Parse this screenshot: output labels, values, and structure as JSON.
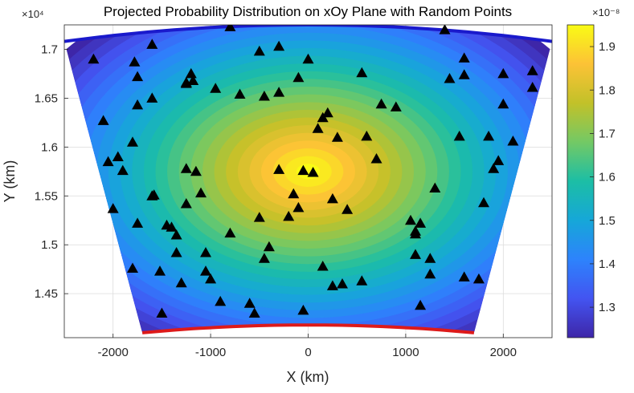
{
  "chart_data": {
    "type": "heatmap",
    "title": "Projected Probability Distribution on xOy Plane with Random Points",
    "xlabel": "X (km)",
    "ylabel": "Y (km)",
    "y_exponent_label": "×10⁴",
    "colorbar_exponent_label": "×10⁻⁸",
    "xlim": [
      -2500,
      2500
    ],
    "ylim": [
      14050,
      17250
    ],
    "x_ticks": [
      -2000,
      -1000,
      0,
      1000,
      2000
    ],
    "x_tick_labels": [
      "-2000",
      "-1000",
      "0",
      "1000",
      "2000"
    ],
    "y_ticks": [
      14500,
      15000,
      15500,
      16000,
      16500,
      17000
    ],
    "y_tick_labels": [
      "1.45",
      "1.5",
      "1.55",
      "1.6",
      "1.65",
      "1.7"
    ],
    "colorbar_range": [
      1.23,
      1.95
    ],
    "colorbar_ticks": [
      1.3,
      1.4,
      1.5,
      1.6,
      1.7,
      1.8,
      1.9
    ],
    "colorbar_tick_labels": [
      "1.3",
      "1.4",
      "1.5",
      "1.6",
      "1.7",
      "1.8",
      "1.9"
    ],
    "colormap": "parula",
    "grid": true,
    "distribution": {
      "center_x": 0,
      "center_y": 15750,
      "peak": 1.95,
      "min": 1.23
    },
    "domain": {
      "top_arc_color": "#1a1acc",
      "bottom_arc_color": "#dd1a1a",
      "top_arc": {
        "x_range": [
          -2500,
          2500
        ],
        "y_center": 17250,
        "y_edge": 17080
      },
      "bottom_arc": {
        "x_range": [
          -1700,
          1700
        ],
        "y_center": 14180,
        "y_edge": 14100
      }
    },
    "points": [
      [
        -2200,
        16900
      ],
      [
        -2100,
        16270
      ],
      [
        -2050,
        15850
      ],
      [
        -2000,
        15370
      ],
      [
        -1950,
        15900
      ],
      [
        -1900,
        15760
      ],
      [
        -1800,
        16050
      ],
      [
        -1780,
        16870
      ],
      [
        -1750,
        16720
      ],
      [
        -1750,
        16430
      ],
      [
        -1750,
        15220
      ],
      [
        -1800,
        14760
      ],
      [
        -1600,
        17050
      ],
      [
        -1600,
        16500
      ],
      [
        -1600,
        15500
      ],
      [
        -1580,
        15510
      ],
      [
        -1520,
        14730
      ],
      [
        -1500,
        14300
      ],
      [
        -1450,
        15200
      ],
      [
        -1400,
        15180
      ],
      [
        -1350,
        15100
      ],
      [
        -1350,
        14920
      ],
      [
        -1300,
        14610
      ],
      [
        -1250,
        16650
      ],
      [
        -1200,
        16750
      ],
      [
        -1250,
        16660
      ],
      [
        -1180,
        16680
      ],
      [
        -1250,
        15780
      ],
      [
        -1250,
        15420
      ],
      [
        -1150,
        15750
      ],
      [
        -1100,
        15530
      ],
      [
        -1050,
        14920
      ],
      [
        -1050,
        14730
      ],
      [
        -1000,
        14650
      ],
      [
        -950,
        16600
      ],
      [
        -900,
        14420
      ],
      [
        -800,
        15120
      ],
      [
        -800,
        17230
      ],
      [
        -700,
        16540
      ],
      [
        -600,
        14400
      ],
      [
        -550,
        14300
      ],
      [
        -500,
        15280
      ],
      [
        -500,
        16980
      ],
      [
        -450,
        16520
      ],
      [
        -450,
        14860
      ],
      [
        -400,
        14980
      ],
      [
        -300,
        17030
      ],
      [
        -300,
        16560
      ],
      [
        -300,
        15770
      ],
      [
        -200,
        15290
      ],
      [
        -150,
        15520
      ],
      [
        -100,
        15380
      ],
      [
        -50,
        15760
      ],
      [
        -100,
        16710
      ],
      [
        0,
        16900
      ],
      [
        -50,
        14330
      ],
      [
        50,
        15740
      ],
      [
        100,
        16190
      ],
      [
        150,
        16300
      ],
      [
        150,
        14780
      ],
      [
        200,
        16350
      ],
      [
        250,
        14580
      ],
      [
        250,
        15470
      ],
      [
        300,
        16100
      ],
      [
        350,
        14600
      ],
      [
        400,
        15360
      ],
      [
        550,
        16760
      ],
      [
        550,
        14630
      ],
      [
        600,
        16110
      ],
      [
        700,
        15880
      ],
      [
        750,
        16440
      ],
      [
        900,
        16410
      ],
      [
        1050,
        15250
      ],
      [
        1100,
        15110
      ],
      [
        1100,
        15140
      ],
      [
        1100,
        14900
      ],
      [
        1150,
        15220
      ],
      [
        1150,
        14380
      ],
      [
        1250,
        14700
      ],
      [
        1250,
        14860
      ],
      [
        1300,
        15580
      ],
      [
        1400,
        17200
      ],
      [
        1450,
        16700
      ],
      [
        1550,
        16110
      ],
      [
        1600,
        14670
      ],
      [
        1600,
        16740
      ],
      [
        1600,
        16910
      ],
      [
        1750,
        14650
      ],
      [
        1800,
        15430
      ],
      [
        1850,
        16110
      ],
      [
        1900,
        15780
      ],
      [
        1950,
        15860
      ],
      [
        2000,
        16440
      ],
      [
        2000,
        16750
      ],
      [
        2100,
        16060
      ],
      [
        2300,
        16780
      ],
      [
        2300,
        16610
      ]
    ]
  }
}
